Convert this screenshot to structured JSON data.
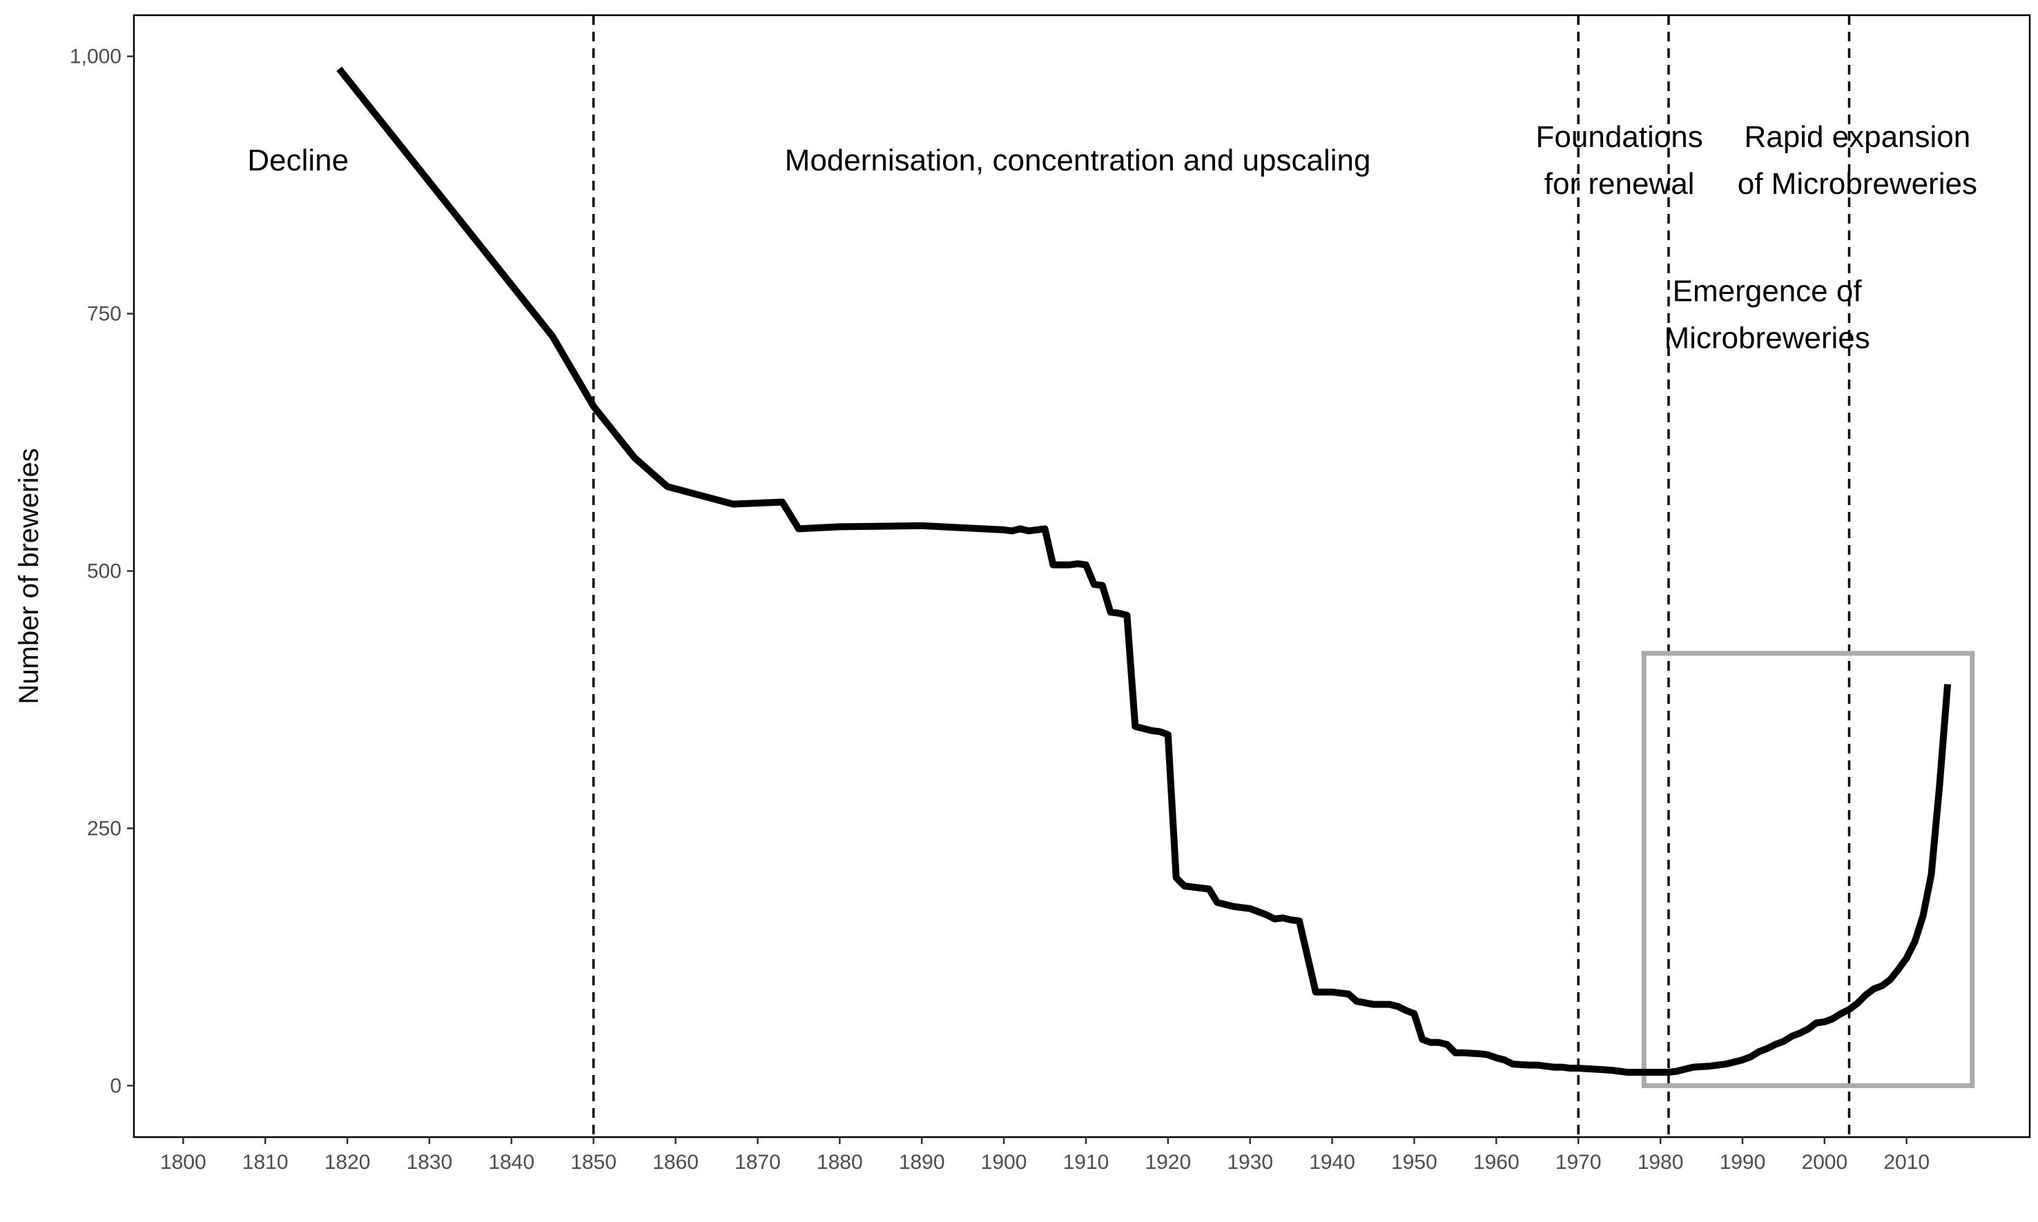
{
  "chart_data": {
    "type": "line",
    "title": "",
    "xlabel": "",
    "ylabel": "Number of breweries",
    "xlim": [
      1794,
      2025
    ],
    "ylim": [
      -50,
      1040
    ],
    "x_ticks": [
      1800,
      1810,
      1820,
      1830,
      1840,
      1850,
      1860,
      1870,
      1880,
      1890,
      1900,
      1910,
      1920,
      1930,
      1940,
      1950,
      1960,
      1970,
      1980,
      1990,
      2000,
      2010
    ],
    "y_ticks": [
      0,
      250,
      500,
      750,
      1000
    ],
    "y_tick_labels": [
      "0",
      "250",
      "500",
      "750",
      "1,000"
    ],
    "grid": false,
    "legend": "none",
    "line_color": "#000000",
    "series": [
      {
        "x": [
          1819,
          1845,
          1850,
          1855,
          1859,
          1867,
          1873,
          1875,
          1880,
          1890,
          1900,
          1901,
          1902,
          1903,
          1904,
          1905,
          1906,
          1908,
          1909,
          1910,
          1911,
          1912,
          1913,
          1914,
          1915,
          1916,
          1918,
          1919,
          1920,
          1921,
          1922,
          1924,
          1925,
          1926,
          1928,
          1930,
          1932,
          1933,
          1934,
          1935,
          1936,
          1938,
          1940,
          1941,
          1942,
          1943,
          1945,
          1947,
          1948,
          1949,
          1950,
          1951,
          1952,
          1953,
          1954,
          1955,
          1956,
          1958,
          1959,
          1960,
          1961,
          1962,
          1964,
          1965,
          1966,
          1967,
          1968,
          1969,
          1970,
          1972,
          1974,
          1976,
          1978,
          1980,
          1981,
          1982,
          1983,
          1984,
          1986,
          1988,
          1990,
          1991,
          1992,
          1993,
          1994,
          1995,
          1996,
          1997,
          1998,
          1999,
          2000,
          2001,
          2002,
          2003,
          2004,
          2005,
          2006,
          2007,
          2008,
          2009,
          2010,
          2011,
          2012,
          2013,
          2014,
          2015
        ],
        "values": [
          988,
          728,
          660,
          610,
          582,
          565,
          567,
          541,
          543,
          544,
          540,
          539,
          541,
          539,
          540,
          541,
          506,
          506,
          507,
          506,
          487,
          486,
          460,
          459,
          457,
          349,
          345,
          344,
          341,
          202,
          194,
          192,
          191,
          178,
          174,
          172,
          166,
          162,
          163,
          161,
          160,
          91,
          91,
          90,
          89,
          82,
          79,
          79,
          77,
          73,
          70,
          45,
          42,
          42,
          40,
          32,
          32,
          31,
          30,
          27,
          25,
          21,
          20,
          20,
          19,
          18,
          18,
          17,
          17,
          16,
          15,
          13,
          13,
          13,
          13,
          14,
          16,
          18,
          19,
          21,
          25,
          28,
          33,
          36,
          40,
          43,
          48,
          51,
          55,
          61,
          62,
          65,
          70,
          74,
          80,
          88,
          94,
          97,
          103,
          113,
          124,
          140,
          165,
          205,
          290,
          390
        ]
      }
    ],
    "vlines": [
      1850,
      1970,
      1981,
      2003
    ],
    "highlight_box": {
      "x": [
        1978,
        2018
      ],
      "y": [
        0,
        420
      ],
      "color": "#aaaaaa"
    },
    "annotations": [
      {
        "lines": [
          "Decline"
        ],
        "x": 1814,
        "y": 900
      },
      {
        "lines": [
          "Modernisation, concentration and upscaling"
        ],
        "x": 1909,
        "y": 900
      },
      {
        "lines": [
          "Foundations",
          "for renewal"
        ],
        "x": 1975,
        "y": 900
      },
      {
        "lines": [
          "Rapid expansion",
          "of Microbreweries"
        ],
        "x": 2004,
        "y": 900
      },
      {
        "lines": [
          "Emergence of",
          "Microbreweries"
        ],
        "x": 1993,
        "y": 750
      }
    ]
  }
}
